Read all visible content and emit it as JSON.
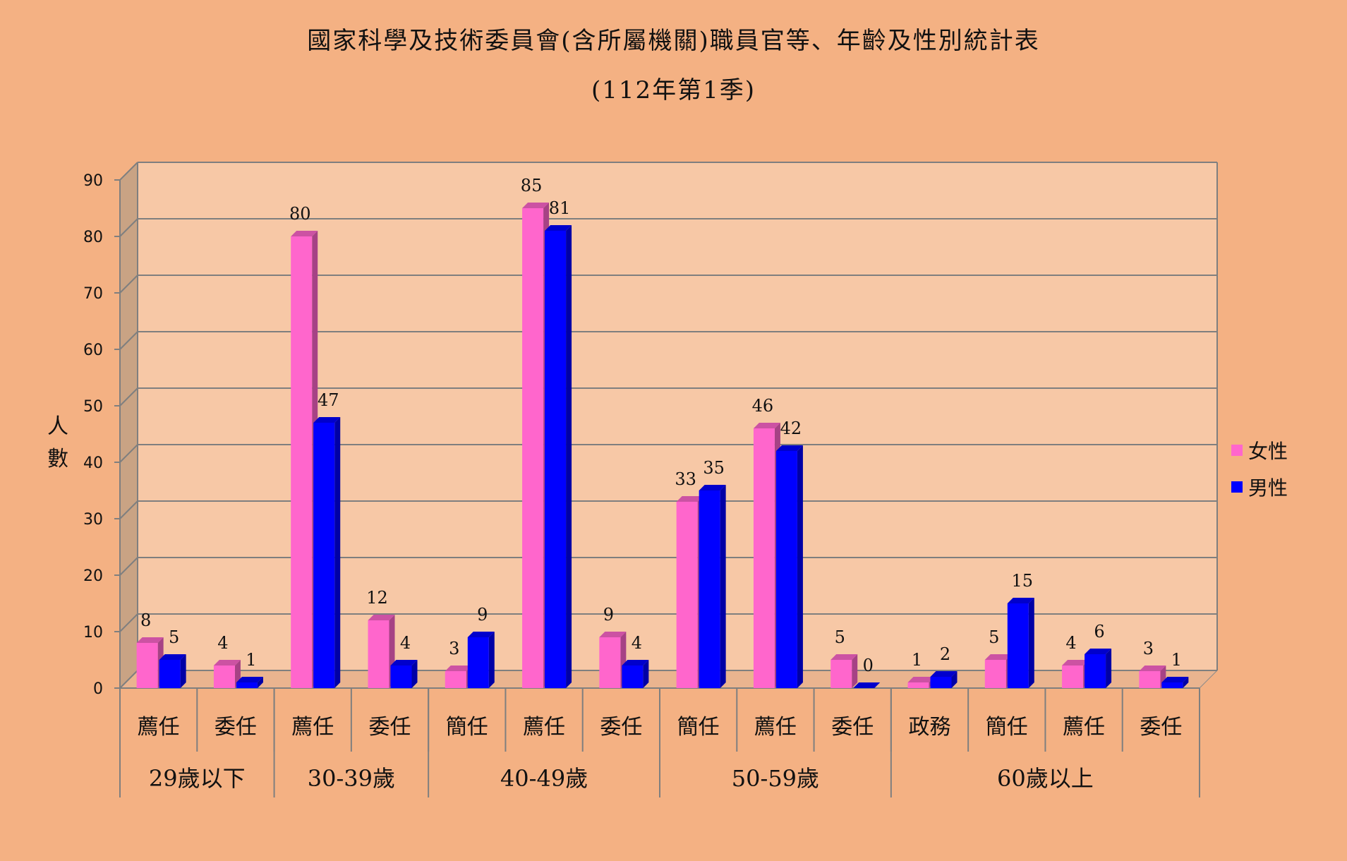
{
  "chart_data": {
    "type": "bar",
    "title": "國家科學及技術委員會(含所屬機關)職員官等、年齡及性別統計表",
    "subtitle": "(112年第1季)",
    "ylabel": "人數",
    "ylim": [
      0,
      90
    ],
    "yticks": [
      0,
      10,
      20,
      30,
      40,
      50,
      60,
      70,
      80,
      90
    ],
    "grid": true,
    "legend_position": "right",
    "groups": [
      {
        "label": "29歲以下",
        "span": 2
      },
      {
        "label": "30-39歲",
        "span": 2
      },
      {
        "label": "40-49歲",
        "span": 3
      },
      {
        "label": "50-59歲",
        "span": 3
      },
      {
        "label": "60歲以上",
        "span": 4
      }
    ],
    "categories": [
      "薦任",
      "委任",
      "薦任",
      "委任",
      "簡任",
      "薦任",
      "委任",
      "簡任",
      "薦任",
      "委任",
      "政務",
      "簡任",
      "薦任",
      "委任"
    ],
    "series": [
      {
        "name": "女性",
        "color": "#ff66cc",
        "values": [
          8,
          4,
          80,
          12,
          3,
          85,
          9,
          33,
          46,
          5,
          1,
          5,
          4,
          3
        ]
      },
      {
        "name": "男性",
        "color": "#0000ff",
        "values": [
          5,
          1,
          47,
          4,
          9,
          81,
          4,
          35,
          42,
          0,
          2,
          15,
          6,
          1
        ]
      }
    ]
  },
  "colors": {
    "background": "#f4b183",
    "plot_area": "#f7c8a6",
    "side_wall": "#c9a384",
    "gridline": "#7f7f7f"
  }
}
